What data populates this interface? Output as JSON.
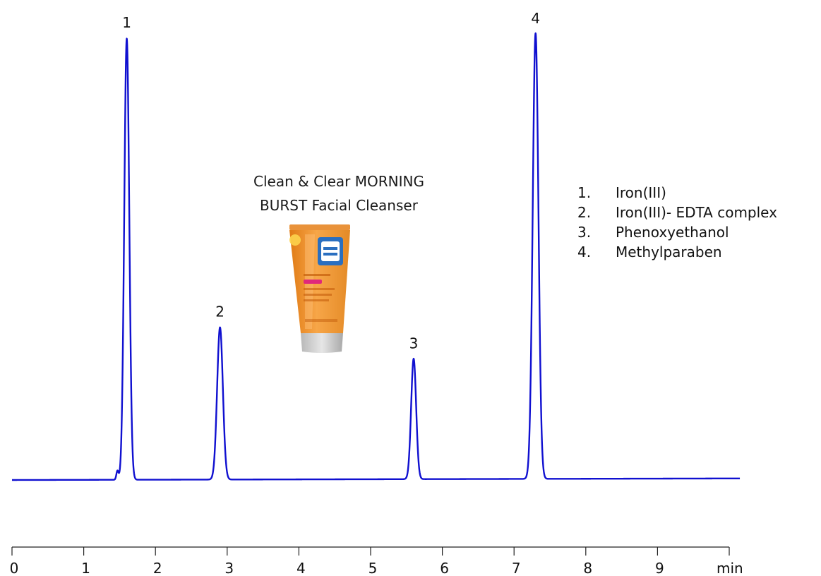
{
  "chart_data": {
    "type": "line",
    "title": "",
    "xlabel": "",
    "x_unit": "min",
    "ylabel": "",
    "xlim": [
      0,
      10
    ],
    "x_ticks": [
      "0",
      "1",
      "2",
      "3",
      "4",
      "5",
      "6",
      "7",
      "8",
      "9"
    ],
    "grid": false,
    "line_color": "#1010d0",
    "baseline": 0,
    "peaks": [
      {
        "label": "1",
        "time": 1.6,
        "height": 100,
        "width": 0.035
      },
      {
        "label": "2",
        "time": 2.9,
        "height": 34.5,
        "width": 0.04
      },
      {
        "label": "3",
        "time": 5.6,
        "height": 27.3,
        "width": 0.035
      },
      {
        "label": "4",
        "time": 7.3,
        "height": 101,
        "width": 0.04
      }
    ],
    "minor_features": [
      {
        "time": 1.47,
        "height": 2.0,
        "width": 0.015
      }
    ],
    "legend": {
      "placement": "right",
      "items": [
        {
          "number": "1.",
          "name": "Iron(III)"
        },
        {
          "number": "2.",
          "name": "Iron(III)- EDTA complex"
        },
        {
          "number": "3.",
          "name": "Phenoxyethanol"
        },
        {
          "number": "4.",
          "name": "Methylparaben"
        }
      ]
    },
    "annotation": {
      "line1": "Clean & Clear MORNING",
      "line2": "BURST Facial Cleanser"
    },
    "product_image": {
      "tube_color": "#f0962a",
      "cap_color": "#cfcfcf",
      "logo_color": "#2a6fc0"
    }
  }
}
